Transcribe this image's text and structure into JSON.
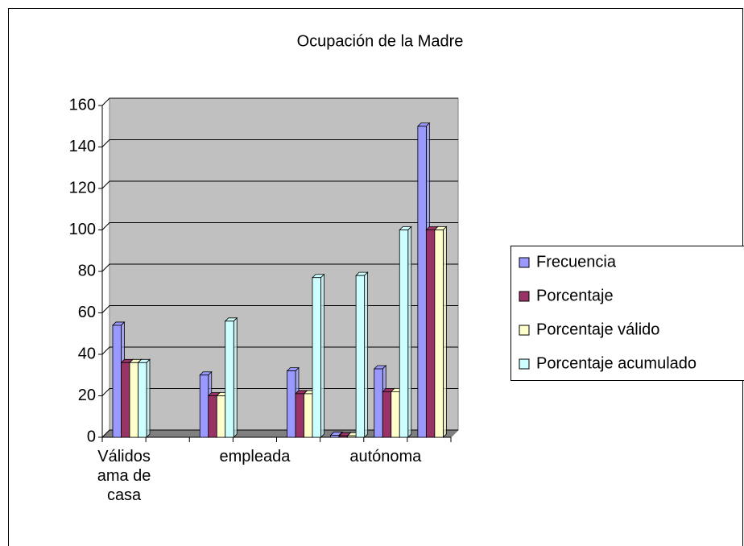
{
  "chart_data": {
    "type": "bar3d",
    "title": "Ocupación de la Madre",
    "categories": [
      "Válidos ama de casa",
      null,
      null,
      "empleada",
      null,
      null,
      "autónoma",
      null
    ],
    "series": [
      {
        "name": "Frecuencia",
        "color": "#9999ff",
        "values": [
          54,
          null,
          30,
          null,
          32,
          1,
          33,
          150
        ]
      },
      {
        "name": "Porcentaje",
        "color": "#993366",
        "values": [
          36,
          null,
          20,
          null,
          21,
          0.7,
          22,
          100
        ]
      },
      {
        "name": "Porcentaje válido",
        "color": "#ffffcc",
        "values": [
          36,
          null,
          20,
          null,
          21,
          0.7,
          22,
          100
        ]
      },
      {
        "name": "Porcentaje acumulado",
        "color": "#ccffff",
        "values": [
          36,
          null,
          56,
          null,
          77,
          78,
          100,
          null
        ]
      }
    ],
    "ylim": [
      0,
      160
    ],
    "yticks": [
      0,
      20,
      40,
      60,
      80,
      100,
      120,
      140,
      160
    ],
    "grid": true,
    "legend": "right"
  }
}
